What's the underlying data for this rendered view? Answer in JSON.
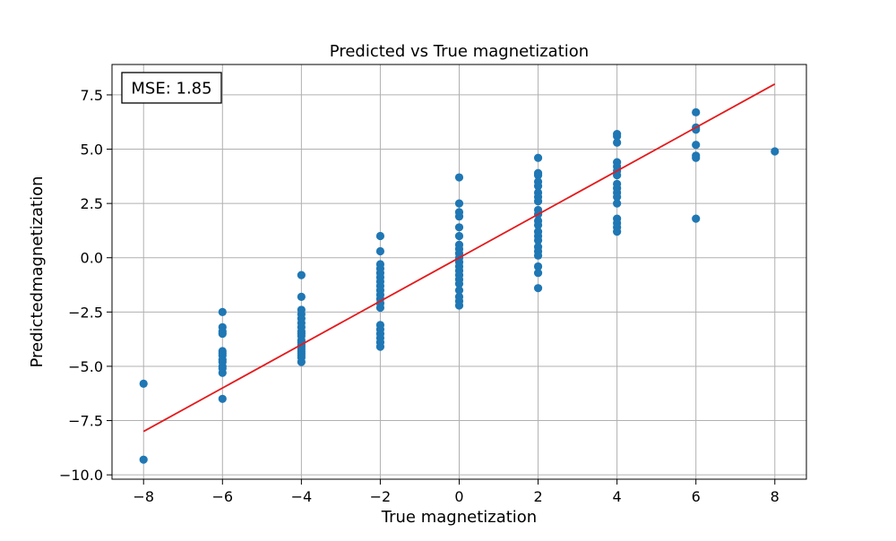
{
  "chart_data": {
    "type": "scatter",
    "title": "Predicted vs True magnetization",
    "xlabel": "True magnetization",
    "ylabel": "Predictedmagnetization",
    "xlim": [
      -8.8,
      8.8
    ],
    "ylim": [
      -10.2,
      8.9
    ],
    "x_ticks": [
      -8,
      -6,
      -4,
      -2,
      0,
      2,
      4,
      6,
      8
    ],
    "y_ticks": [
      -10.0,
      -7.5,
      -5.0,
      -2.5,
      0.0,
      2.5,
      5.0,
      7.5
    ],
    "x_tick_labels": [
      "−8",
      "−6",
      "−4",
      "−2",
      "0",
      "2",
      "4",
      "6",
      "8"
    ],
    "y_tick_labels": [
      "−10.0",
      "−7.5",
      "−5.0",
      "−2.5",
      "0.0",
      "2.5",
      "5.0",
      "7.5"
    ],
    "grid": true,
    "annotation": "MSE: 1.85",
    "points": [
      [
        -8,
        -5.8
      ],
      [
        -8,
        -9.3
      ],
      [
        -6,
        -2.5
      ],
      [
        -6,
        -3.2
      ],
      [
        -6,
        -3.4
      ],
      [
        -6,
        -3.5
      ],
      [
        -6,
        -4.3
      ],
      [
        -6,
        -4.4
      ],
      [
        -6,
        -4.5
      ],
      [
        -6,
        -4.7
      ],
      [
        -6,
        -4.8
      ],
      [
        -6,
        -5.0
      ],
      [
        -6,
        -5.1
      ],
      [
        -6,
        -5.3
      ],
      [
        -6,
        -6.5
      ],
      [
        -4,
        -0.8
      ],
      [
        -4,
        -1.8
      ],
      [
        -4,
        -2.4
      ],
      [
        -4,
        -2.6
      ],
      [
        -4,
        -2.8
      ],
      [
        -4,
        -3.0
      ],
      [
        -4,
        -3.2
      ],
      [
        -4,
        -3.4
      ],
      [
        -4,
        -3.5
      ],
      [
        -4,
        -3.6
      ],
      [
        -4,
        -3.8
      ],
      [
        -4,
        -3.9
      ],
      [
        -4,
        -4.0
      ],
      [
        -4,
        -4.1
      ],
      [
        -4,
        -4.2
      ],
      [
        -4,
        -4.3
      ],
      [
        -4,
        -4.4
      ],
      [
        -4,
        -4.5
      ],
      [
        -4,
        -4.6
      ],
      [
        -4,
        -4.8
      ],
      [
        -2,
        1.0
      ],
      [
        -2,
        0.3
      ],
      [
        -2,
        -0.3
      ],
      [
        -2,
        -0.5
      ],
      [
        -2,
        -0.7
      ],
      [
        -2,
        -0.9
      ],
      [
        -2,
        -1.1
      ],
      [
        -2,
        -1.3
      ],
      [
        -2,
        -1.5
      ],
      [
        -2,
        -1.7
      ],
      [
        -2,
        -1.9
      ],
      [
        -2,
        -2.1
      ],
      [
        -2,
        -2.3
      ],
      [
        -2,
        -3.1
      ],
      [
        -2,
        -3.3
      ],
      [
        -2,
        -3.5
      ],
      [
        -2,
        -3.7
      ],
      [
        -2,
        -3.9
      ],
      [
        -2,
        -4.1
      ],
      [
        0,
        3.7
      ],
      [
        0,
        2.5
      ],
      [
        0,
        2.1
      ],
      [
        0,
        1.9
      ],
      [
        0,
        1.4
      ],
      [
        0,
        1.0
      ],
      [
        0,
        0.6
      ],
      [
        0,
        0.4
      ],
      [
        0,
        0.2
      ],
      [
        0,
        0.0
      ],
      [
        0,
        -0.2
      ],
      [
        0,
        -0.4
      ],
      [
        0,
        -0.6
      ],
      [
        0,
        -0.8
      ],
      [
        0,
        -1.0
      ],
      [
        0,
        -1.2
      ],
      [
        0,
        -1.5
      ],
      [
        0,
        -1.8
      ],
      [
        0,
        -2.0
      ],
      [
        0,
        -2.2
      ],
      [
        2,
        4.6
      ],
      [
        2,
        3.9
      ],
      [
        2,
        3.8
      ],
      [
        2,
        3.5
      ],
      [
        2,
        3.3
      ],
      [
        2,
        3.0
      ],
      [
        2,
        2.8
      ],
      [
        2,
        2.6
      ],
      [
        2,
        2.2
      ],
      [
        2,
        2.0
      ],
      [
        2,
        1.7
      ],
      [
        2,
        1.5
      ],
      [
        2,
        1.2
      ],
      [
        2,
        1.0
      ],
      [
        2,
        0.8
      ],
      [
        2,
        0.5
      ],
      [
        2,
        0.3
      ],
      [
        2,
        0.1
      ],
      [
        2,
        -0.4
      ],
      [
        2,
        -0.7
      ],
      [
        2,
        -1.4
      ],
      [
        4,
        5.7
      ],
      [
        4,
        5.6
      ],
      [
        4,
        5.3
      ],
      [
        4,
        4.4
      ],
      [
        4,
        4.2
      ],
      [
        4,
        4.0
      ],
      [
        4,
        3.8
      ],
      [
        4,
        3.4
      ],
      [
        4,
        3.2
      ],
      [
        4,
        3.0
      ],
      [
        4,
        2.8
      ],
      [
        4,
        2.5
      ],
      [
        4,
        1.8
      ],
      [
        4,
        1.6
      ],
      [
        4,
        1.4
      ],
      [
        4,
        1.2
      ],
      [
        6,
        6.7
      ],
      [
        6,
        6.0
      ],
      [
        6,
        5.9
      ],
      [
        6,
        5.2
      ],
      [
        6,
        4.7
      ],
      [
        6,
        4.6
      ],
      [
        6,
        1.8
      ],
      [
        8,
        4.9
      ]
    ],
    "reference_line": {
      "x": [
        -8,
        8
      ],
      "y": [
        -8,
        8
      ]
    },
    "colors": {
      "points": "#1f77b4",
      "line": "#e41a1c",
      "grid": "#b0b0b0",
      "axes": "#000000"
    }
  }
}
